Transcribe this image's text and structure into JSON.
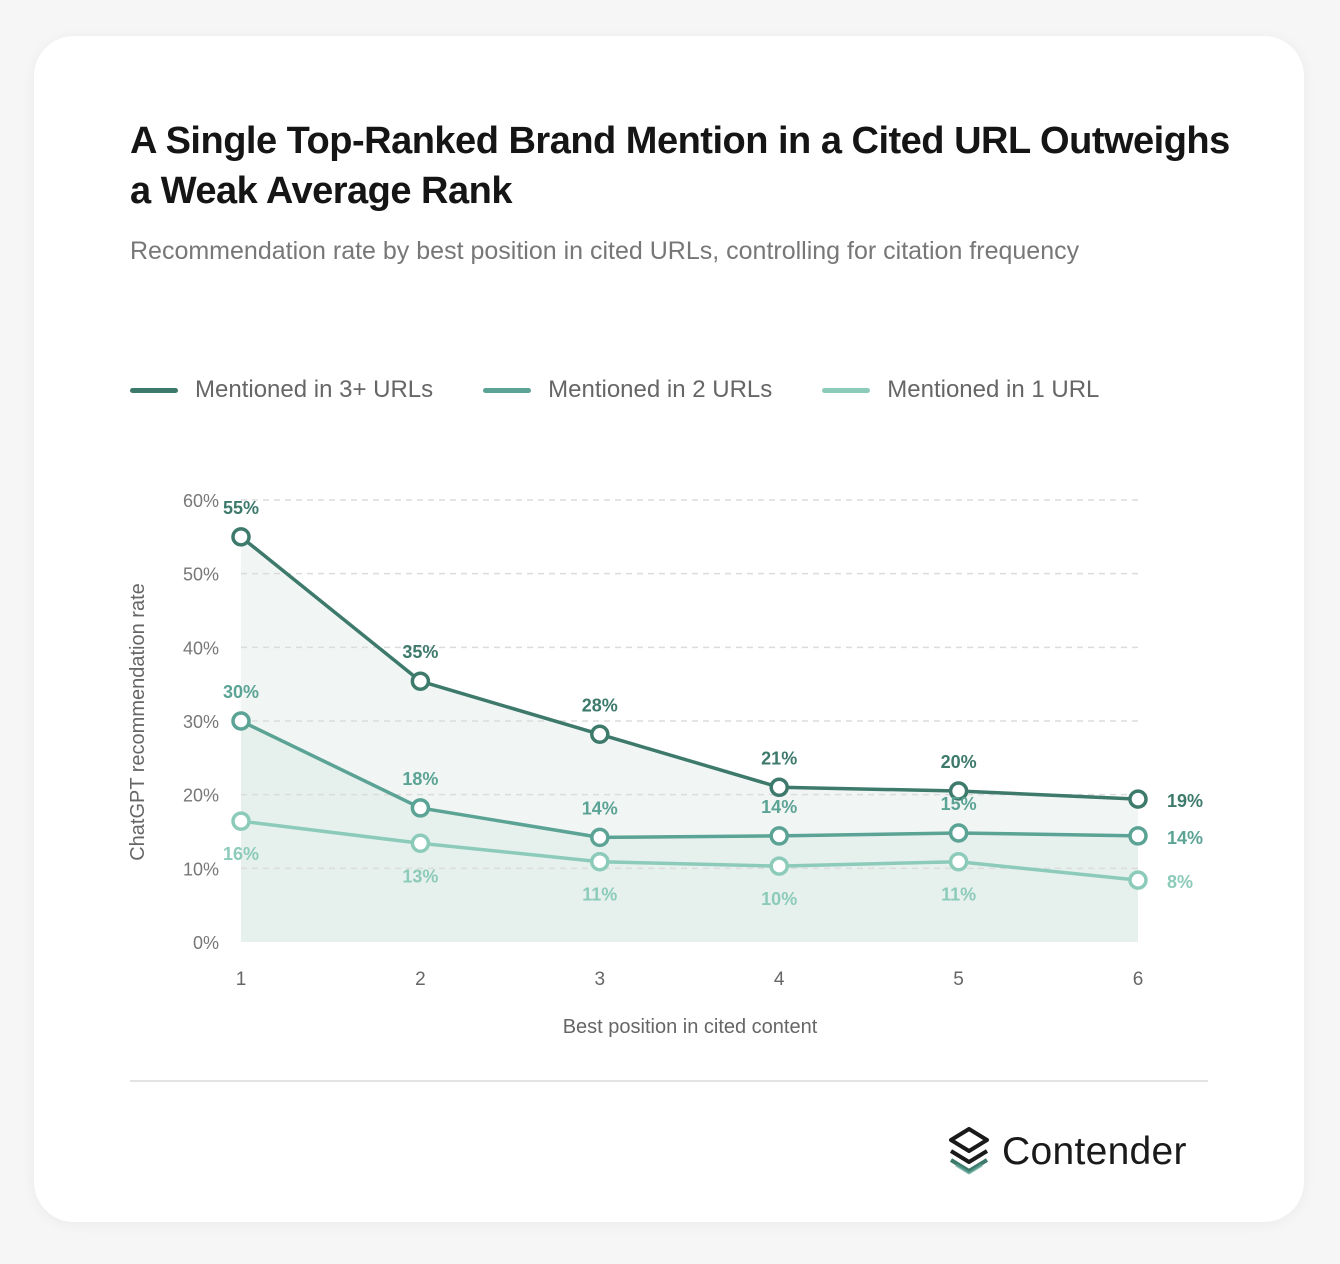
{
  "header": {
    "title": "A Single Top-Ranked Brand Mention in a Cited URL Outweighs a Weak Average Rank",
    "subtitle": "Recommendation rate by best position in cited URLs, controlling for citation frequency"
  },
  "legend": {
    "items": [
      {
        "label": "Mentioned in 3+ URLs",
        "color": "#3d7a6b"
      },
      {
        "label": "Mentioned in 2 URLs",
        "color": "#5ba394"
      },
      {
        "label": "Mentioned in 1 URL",
        "color": "#8ccbb9"
      }
    ]
  },
  "chart_data": {
    "type": "line",
    "title": "A Single Top-Ranked Brand Mention in a Cited URL Outweighs a Weak Average Rank",
    "subtitle": "Recommendation rate by best position in cited URLs, controlling for citation frequency",
    "x": [
      1,
      2,
      3,
      4,
      5,
      6
    ],
    "xlabel": "Best position in cited content",
    "ylabel": "ChatGPT recommendation rate",
    "ylim": [
      0,
      60
    ],
    "yticks": [
      0,
      10,
      20,
      30,
      40,
      50,
      60
    ],
    "ytick_labels": [
      "0%",
      "10%",
      "20%",
      "30%",
      "40%",
      "50%",
      "60%"
    ],
    "grid": true,
    "legend_position": "top-left",
    "series": [
      {
        "name": "Mentioned in 3+ URLs",
        "color": "#3d7a6b",
        "values": [
          55,
          35.4,
          28.2,
          21,
          20.5,
          19.4
        ],
        "labels": [
          "55%",
          "35%",
          "28%",
          "21%",
          "20%",
          "19%"
        ]
      },
      {
        "name": "Mentioned in 2 URLs",
        "color": "#5ba394",
        "values": [
          30,
          18.2,
          14.2,
          14.4,
          14.8,
          14.4
        ],
        "labels": [
          "30%",
          "18%",
          "14%",
          "14%",
          "15%",
          "14%"
        ]
      },
      {
        "name": "Mentioned in 1 URL",
        "color": "#8ccbb9",
        "values": [
          16.4,
          13.4,
          10.9,
          10.3,
          10.9,
          8.4
        ],
        "labels": [
          "16%",
          "13%",
          "11%",
          "10%",
          "11%",
          "8%"
        ]
      }
    ]
  },
  "brand": {
    "name": "Contender"
  }
}
